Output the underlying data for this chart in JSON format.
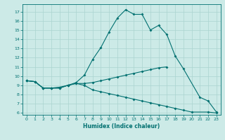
{
  "title": "",
  "xlabel": "Humidex (Indice chaleur)",
  "ylabel": "",
  "background_color": "#cceae7",
  "line_color": "#007070",
  "grid_color": "#aad4d0",
  "xlim": [
    -0.5,
    23.5
  ],
  "ylim": [
    5.8,
    17.8
  ],
  "yticks": [
    6,
    7,
    8,
    9,
    10,
    11,
    12,
    13,
    14,
    15,
    16,
    17
  ],
  "xticks": [
    0,
    1,
    2,
    3,
    4,
    5,
    6,
    7,
    8,
    9,
    10,
    11,
    12,
    13,
    14,
    15,
    16,
    17,
    18,
    19,
    20,
    21,
    22,
    23
  ],
  "series": [
    {
      "x": [
        0,
        1,
        2,
        3,
        4,
        5,
        6,
        7,
        8,
        9,
        10,
        11,
        12,
        13,
        14,
        15,
        16,
        17,
        18,
        19,
        20,
        22,
        23
      ],
      "y": [
        9.5,
        9.4,
        8.7,
        8.7,
        8.7,
        9.0,
        9.2,
        9.0,
        8.5,
        8.3,
        8.1,
        7.9,
        7.7,
        7.5,
        7.3,
        7.1,
        6.9,
        6.7,
        6.5,
        6.3,
        6.1,
        6.1,
        6.0
      ]
    },
    {
      "x": [
        0,
        1,
        2,
        3,
        4,
        5,
        6,
        7,
        8,
        9,
        10,
        11,
        12,
        13,
        14,
        15,
        16,
        17
      ],
      "y": [
        9.5,
        9.4,
        8.7,
        8.7,
        8.7,
        9.0,
        9.2,
        9.2,
        9.3,
        9.5,
        9.7,
        9.9,
        10.1,
        10.3,
        10.5,
        10.7,
        10.9,
        11.0
      ]
    },
    {
      "x": [
        0,
        1,
        2,
        3,
        4,
        5,
        6,
        7,
        8,
        9,
        10,
        11,
        12,
        13,
        14,
        15,
        16,
        17,
        18,
        19,
        21,
        22,
        23
      ],
      "y": [
        9.5,
        9.4,
        8.7,
        8.7,
        8.8,
        9.0,
        9.3,
        10.1,
        11.8,
        13.1,
        14.8,
        16.3,
        17.2,
        16.7,
        16.7,
        15.0,
        15.5,
        14.5,
        12.2,
        10.8,
        7.7,
        7.3,
        6.1
      ]
    }
  ]
}
